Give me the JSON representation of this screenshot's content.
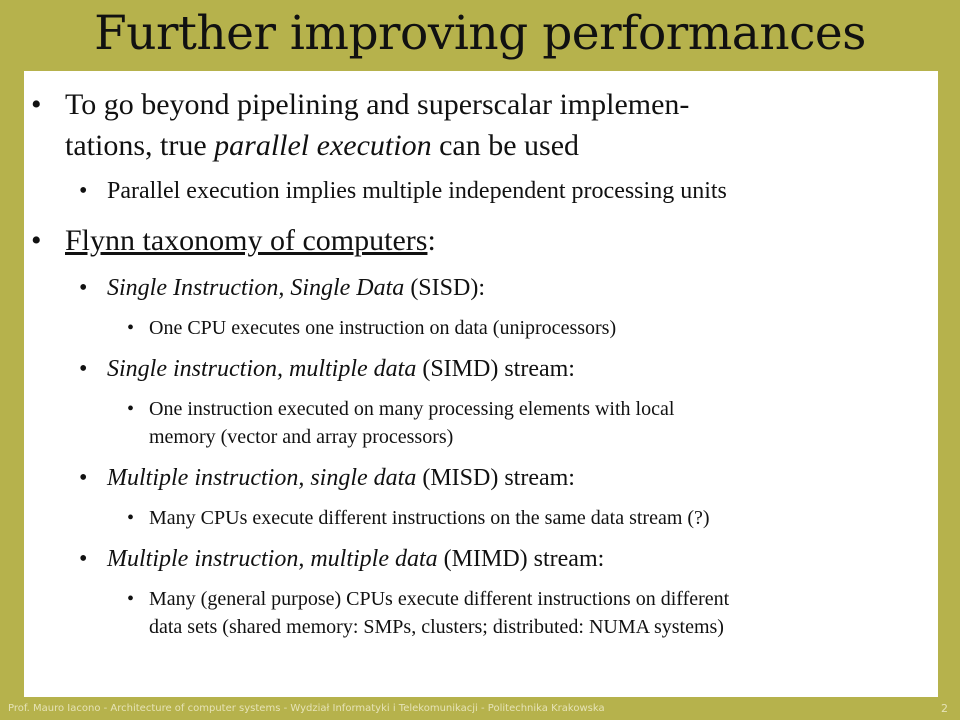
{
  "title": "Further improving performances",
  "bullets": {
    "b1": {
      "line1": "To go beyond pipelining and superscalar implemen-",
      "line2_pre": "tations, true ",
      "line2_em": "parallel execution",
      "line2_post": " can be used"
    },
    "b1_sub": "Parallel execution implies multiple independent processing units",
    "b2": {
      "link": "Flynn taxonomy of computers",
      "suffix": ":"
    },
    "sisd": {
      "em": "Single Instruction, Single Data",
      "rest": " (SISD):",
      "detail": "One CPU executes one instruction on data (uniprocessors)"
    },
    "simd": {
      "em": "Single instruction, multiple data",
      "rest": " (SIMD) stream:",
      "detail_line1": "One instruction executed on many processing elements with local",
      "detail_line2": "memory (vector and array processors)"
    },
    "misd": {
      "em": "Multiple instruction, single data",
      "rest": " (MISD) stream:",
      "detail": "Many CPUs execute different instructions on the same data stream (?)"
    },
    "mimd": {
      "em": "Multiple instruction, multiple data",
      "rest": " (MIMD) stream:",
      "detail_line1": "Many (general purpose) CPUs execute different instructions on different",
      "detail_line2": "data sets (shared memory: SMPs, clusters; distributed: NUMA systems)"
    }
  },
  "bullet_glyph": "•",
  "footer": "Prof. Mauro Iacono - Architecture of computer systems - Wydział Informatyki i Telekomunikacji - Politechnika Krakowska",
  "page_number": "2",
  "colors": {
    "background": "#b6b24c",
    "panel": "#ffffff",
    "text": "#111111",
    "footer_text": "#e6e3b7"
  }
}
